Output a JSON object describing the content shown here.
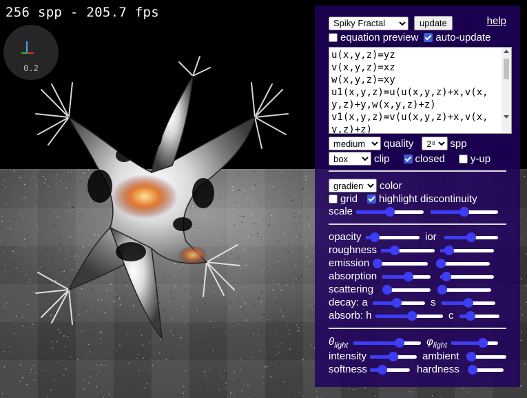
{
  "hud": {
    "fps_text": "256 spp - 205.7 fps",
    "axis_scale": "0.2"
  },
  "panel": {
    "preset": {
      "selected": "Spiky Fractal"
    },
    "update_label": "update",
    "help_label": "help",
    "equation_preview": {
      "label": "equation preview",
      "checked": false
    },
    "auto_update": {
      "label": "auto-update",
      "checked": true
    },
    "equations": "u(x,y,z)=yz\nv(x,y,z)=xz\nw(x,y,z)=xy\nu1(x,y,z)=u(u(x,y,z)+x,v(x,y,z)+y,w(x,y,z)+z)\nv1(x,y,z)=v(u(x,y,z)+x,v(x,y,z)+z)",
    "quality": {
      "selected": "medium",
      "label": "quality"
    },
    "spp": {
      "selected": "2⁸",
      "label": "spp"
    },
    "clip": {
      "selected": "box",
      "label": "clip"
    },
    "closed": {
      "label": "closed",
      "checked": true
    },
    "y_up": {
      "label": "y-up",
      "checked": false
    },
    "color": {
      "selected": "gradient",
      "label": "color"
    },
    "grid": {
      "label": "grid",
      "checked": false
    },
    "highlight": {
      "label": "highlight discontinuity",
      "checked": true
    },
    "scale": {
      "label": "scale",
      "values": [
        0.5,
        0.5
      ]
    },
    "material": {
      "opacity": {
        "label": "opacity",
        "value": 0.1
      },
      "ior": {
        "label": "ior",
        "value": 0.5
      },
      "roughness": {
        "label": "roughness",
        "values": [
          0.2,
          0.1
        ]
      },
      "emission": {
        "label": "emission",
        "values": [
          0.0,
          0.0
        ]
      },
      "absorption": {
        "label": "absorption",
        "values": [
          0.55,
          0.03
        ]
      },
      "scattering": {
        "label": "scattering",
        "values": [
          0.0,
          0.0
        ]
      },
      "decay_a": {
        "label": "decay: a",
        "value": 0.45
      },
      "decay_s": {
        "label": "s",
        "value": 0.5
      },
      "absorb_h": {
        "label": "absorb: h",
        "value": 0.55
      },
      "absorb_c": {
        "label": "c",
        "value": 0.2
      }
    },
    "lighting": {
      "theta_label": "θ",
      "theta_sub": "light",
      "theta": 0.72,
      "phi_label": "φ",
      "phi_sub": "light",
      "phi": 0.72,
      "intensity": {
        "label": "intensity",
        "value": 0.5
      },
      "ambient": {
        "label": "ambient",
        "value": 0.0
      },
      "softness": {
        "label": "softness",
        "value": 0.25
      },
      "hardness": {
        "label": "hardness",
        "value": 0.0
      }
    }
  }
}
